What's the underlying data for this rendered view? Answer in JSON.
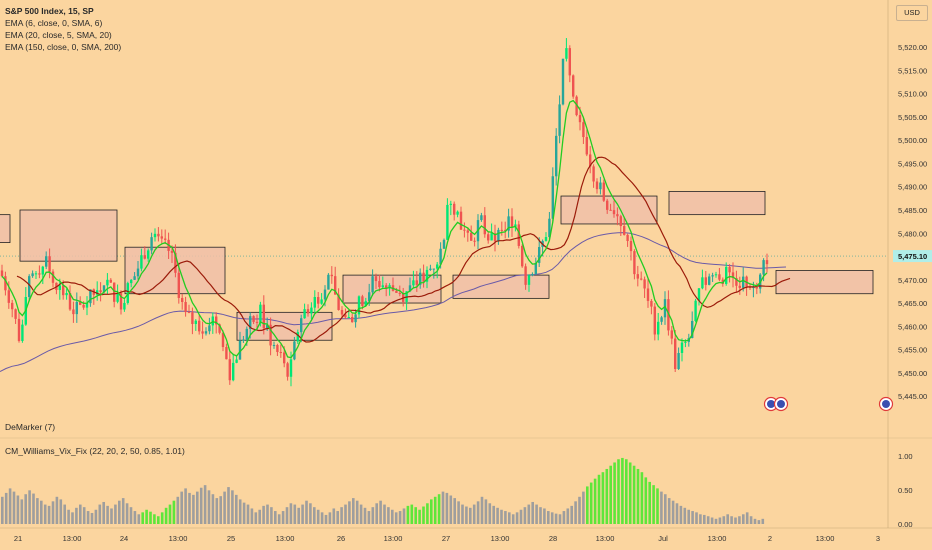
{
  "header": {
    "title": "S&P 500 Index, 15, SP",
    "indicators": [
      "EMA (6, close, 0, SMA, 6)",
      "EMA (20, close, 5, SMA, 20)",
      "EMA (150, close, 0, SMA, 200)"
    ],
    "currency": "USD"
  },
  "price_axis": {
    "ticks": [
      "5,520.00",
      "5,515.00",
      "5,510.00",
      "5,505.00",
      "5,500.00",
      "5,495.00",
      "5,490.00",
      "5,485.00",
      "5,480.00",
      "5,470.00",
      "5,465.00",
      "5,460.00",
      "5,455.00",
      "5,450.00",
      "5,445.00"
    ],
    "last_price": "5,475.10"
  },
  "lower_panes": {
    "demarker_label": "DeMarker (7)",
    "vix_label": "CM_Williams_Vix_Fix (22, 20, 2, 50, 0.85, 1.01)",
    "vix_ticks": [
      "1.00",
      "0.50",
      "0.00"
    ]
  },
  "time_axis": {
    "labels": [
      "21",
      "13:00",
      "24",
      "13:00",
      "25",
      "13:00",
      "26",
      "13:00",
      "27",
      "13:00",
      "28",
      "13:00",
      "Jul",
      "13:00",
      "2",
      "13:00",
      "3"
    ]
  },
  "colors": {
    "background": "#fbd59f",
    "up": "#26a69a",
    "up_bright": "#00e676",
    "down": "#ef5350",
    "ema6": "#22cc22",
    "ema20": "#9b1b0a",
    "ema150": "#6a5aa8",
    "vix_gray": "#9e9e9e",
    "vix_green": "#5ee63a",
    "zone_fill": "#f0c0a8",
    "price_label": "#b0eee8"
  },
  "chart_data": [
    {
      "type": "candlestick",
      "title": "S&P 500 Index, 15, SP",
      "ylabel": "USD",
      "ylim": [
        5442,
        5528
      ],
      "x": [
        "21",
        "13:00",
        "24",
        "13:00",
        "25",
        "13:00",
        "26",
        "13:00",
        "27",
        "13:00",
        "28",
        "13:00",
        "Jul",
        "13:00",
        "2",
        "13:00",
        "3"
      ],
      "price_path": [
        [
          0,
          5472
        ],
        [
          10,
          5466
        ],
        [
          20,
          5457
        ],
        [
          30,
          5470
        ],
        [
          45,
          5474
        ],
        [
          60,
          5468
        ],
        [
          75,
          5463
        ],
        [
          90,
          5466
        ],
        [
          105,
          5470
        ],
        [
          120,
          5465
        ],
        [
          135,
          5471
        ],
        [
          150,
          5479
        ],
        [
          170,
          5476
        ],
        [
          185,
          5462
        ],
        [
          200,
          5460
        ],
        [
          215,
          5462
        ],
        [
          230,
          5450
        ],
        [
          245,
          5459
        ],
        [
          260,
          5463
        ],
        [
          275,
          5455
        ],
        [
          290,
          5450
        ],
        [
          300,
          5462
        ],
        [
          315,
          5466
        ],
        [
          330,
          5470
        ],
        [
          345,
          5460
        ],
        [
          360,
          5465
        ],
        [
          375,
          5470
        ],
        [
          390,
          5468
        ],
        [
          405,
          5467
        ],
        [
          420,
          5470
        ],
        [
          440,
          5475
        ],
        [
          450,
          5488
        ],
        [
          460,
          5483
        ],
        [
          470,
          5477
        ],
        [
          480,
          5483
        ],
        [
          490,
          5478
        ],
        [
          500,
          5480
        ],
        [
          515,
          5484
        ],
        [
          525,
          5470
        ],
        [
          540,
          5476
        ],
        [
          550,
          5483
        ],
        [
          555,
          5498
        ],
        [
          565,
          5520
        ],
        [
          575,
          5505
        ],
        [
          585,
          5500
        ],
        [
          595,
          5492
        ],
        [
          605,
          5487
        ],
        [
          615,
          5485
        ],
        [
          625,
          5481
        ],
        [
          635,
          5472
        ],
        [
          645,
          5467
        ],
        [
          655,
          5460
        ],
        [
          665,
          5465
        ],
        [
          675,
          5452
        ],
        [
          690,
          5458
        ],
        [
          700,
          5468
        ],
        [
          710,
          5471
        ],
        [
          725,
          5471
        ],
        [
          740,
          5470
        ],
        [
          755,
          5469
        ],
        [
          765,
          5475
        ]
      ],
      "series": [
        {
          "name": "EMA (6, close, 0, SMA, 6)",
          "color": "#22cc22"
        },
        {
          "name": "EMA (20, close, 5, SMA, 20)",
          "color": "#9b1b0a"
        },
        {
          "name": "EMA (150, close, 0, SMA, 200)",
          "color": "#6a5aa8"
        }
      ],
      "last_value": 5475.1,
      "grid": false
    },
    {
      "type": "bar",
      "title": "CM_Williams_Vix_Fix (22, 20, 2, 50, 0.85, 1.01)",
      "ylim": [
        0,
        1.05
      ],
      "values": [
        0.42,
        0.48,
        0.55,
        0.5,
        0.44,
        0.38,
        0.46,
        0.52,
        0.47,
        0.4,
        0.36,
        0.3,
        0.28,
        0.35,
        0.42,
        0.38,
        0.3,
        0.22,
        0.18,
        0.25,
        0.3,
        0.26,
        0.2,
        0.17,
        0.22,
        0.3,
        0.34,
        0.28,
        0.24,
        0.3,
        0.36,
        0.4,
        0.32,
        0.26,
        0.2,
        0.15,
        0.18,
        0.22,
        0.19,
        0.15,
        0.12,
        0.18,
        0.25,
        0.3,
        0.36,
        0.42,
        0.5,
        0.55,
        0.48,
        0.45,
        0.5,
        0.56,
        0.6,
        0.52,
        0.46,
        0.4,
        0.43,
        0.5,
        0.57,
        0.52,
        0.45,
        0.38,
        0.33,
        0.3,
        0.24,
        0.18,
        0.22,
        0.28,
        0.3,
        0.26,
        0.2,
        0.15,
        0.2,
        0.26,
        0.32,
        0.3,
        0.25,
        0.3,
        0.36,
        0.32,
        0.26,
        0.22,
        0.18,
        0.14,
        0.18,
        0.24,
        0.2,
        0.26,
        0.3,
        0.35,
        0.4,
        0.36,
        0.3,
        0.25,
        0.2,
        0.26,
        0.32,
        0.36,
        0.3,
        0.26,
        0.22,
        0.18,
        0.2,
        0.24,
        0.28,
        0.3,
        0.26,
        0.22,
        0.27,
        0.32,
        0.38,
        0.42,
        0.46,
        0.5,
        0.48,
        0.44,
        0.4,
        0.35,
        0.3,
        0.27,
        0.25,
        0.3,
        0.35,
        0.42,
        0.38,
        0.32,
        0.28,
        0.25,
        0.22,
        0.2,
        0.18,
        0.15,
        0.18,
        0.22,
        0.26,
        0.3,
        0.34,
        0.3,
        0.26,
        0.24,
        0.2,
        0.18,
        0.16,
        0.15,
        0.2,
        0.24,
        0.28,
        0.35,
        0.42,
        0.5,
        0.58,
        0.64,
        0.7,
        0.76,
        0.8,
        0.85,
        0.9,
        0.95,
        1.0,
        1.02,
        1.0,
        0.95,
        0.9,
        0.85,
        0.8,
        0.72,
        0.65,
        0.6,
        0.55,
        0.5,
        0.46,
        0.4,
        0.36,
        0.32,
        0.28,
        0.25,
        0.22,
        0.2,
        0.18,
        0.15,
        0.14,
        0.12,
        0.1,
        0.08,
        0.1,
        0.12,
        0.15,
        0.12,
        0.1,
        0.12,
        0.15,
        0.18,
        0.12,
        0.08,
        0.06,
        0.08
      ],
      "green_ranges": [
        [
          36,
          44
        ],
        [
          104,
          112
        ],
        [
          150,
          168
        ]
      ]
    }
  ]
}
